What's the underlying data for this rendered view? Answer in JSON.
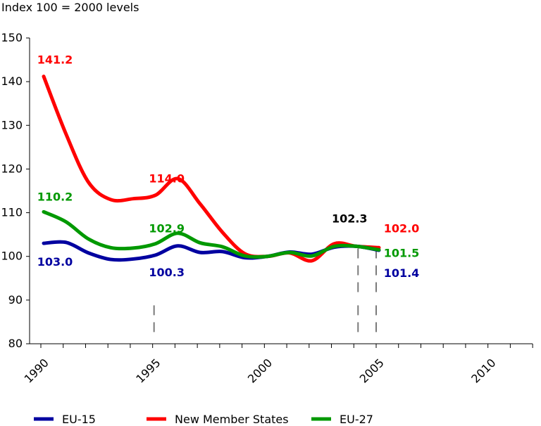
{
  "chart_data": {
    "type": "line",
    "subtitle": "Index 100 = 2000 levels",
    "xlabel": "",
    "ylabel": "",
    "xlim": [
      1990,
      2012.5
    ],
    "ylim": [
      80,
      150
    ],
    "x_ticks": [
      "1990",
      "1995",
      "2000",
      "2005",
      "2010"
    ],
    "y_ticks": [
      "80",
      "90",
      "100",
      "110",
      "120",
      "130",
      "140",
      "150"
    ],
    "grid": false,
    "legend": "bottom",
    "series": [
      {
        "name": "EU-15",
        "color": "#0000a0",
        "x": [
          1990,
          1991,
          1992,
          1993,
          1994,
          1995,
          1996,
          1997,
          1998,
          1999,
          2000,
          2001,
          2002,
          2003,
          2004,
          2005
        ],
        "values": [
          103.0,
          103.2,
          100.8,
          99.3,
          99.4,
          100.3,
          102.4,
          100.9,
          101.1,
          99.7,
          100.0,
          101.0,
          100.5,
          102.1,
          102.3,
          101.4
        ]
      },
      {
        "name": "New Member States",
        "color": "#ff0000",
        "x": [
          1990,
          1991,
          1992,
          1993,
          1994,
          1995,
          1996,
          1997,
          1998,
          1999,
          2000,
          2001,
          2002,
          2003,
          2004,
          2005
        ],
        "values": [
          141.2,
          128.0,
          117.0,
          113.0,
          113.2,
          114.0,
          117.8,
          112.0,
          105.5,
          100.6,
          100.0,
          100.8,
          99.0,
          102.9,
          102.3,
          102.0
        ]
      },
      {
        "name": "EU-27",
        "color": "#009900",
        "x": [
          1990,
          1991,
          1992,
          1993,
          1994,
          1995,
          1996,
          1997,
          1998,
          1999,
          2000,
          2001,
          2002,
          2003,
          2004,
          2005
        ],
        "values": [
          110.2,
          107.9,
          104.0,
          102.0,
          101.9,
          102.9,
          105.3,
          103.1,
          102.2,
          100.1,
          100.0,
          100.9,
          100.1,
          102.3,
          102.3,
          101.5
        ]
      }
    ],
    "annotations": [
      {
        "text": "141.2",
        "color": "#ff0000",
        "x": 1990,
        "y": 141.2
      },
      {
        "text": "114.0",
        "color": "#ff0000",
        "x": 1995,
        "y": 114.0
      },
      {
        "text": "110.2",
        "color": "#009900",
        "x": 1990,
        "y": 110.2
      },
      {
        "text": "102.9",
        "color": "#009900",
        "x": 1995,
        "y": 102.9
      },
      {
        "text": "103.0",
        "color": "#0000a0",
        "x": 1990,
        "y": 103.0
      },
      {
        "text": "100.3",
        "color": "#0000a0",
        "x": 1995,
        "y": 100.3
      },
      {
        "text": "102.3",
        "color": "#000000",
        "x": 2004,
        "y": 102.3
      },
      {
        "text": "102.0",
        "color": "#ff0000",
        "x": 2005,
        "y": 102.0
      },
      {
        "text": "101.5",
        "color": "#009900",
        "x": 2005,
        "y": 101.5
      },
      {
        "text": "101.4",
        "color": "#0000a0",
        "x": 2005,
        "y": 101.4
      }
    ],
    "reference_lines": [
      1995,
      2004,
      2005
    ]
  }
}
